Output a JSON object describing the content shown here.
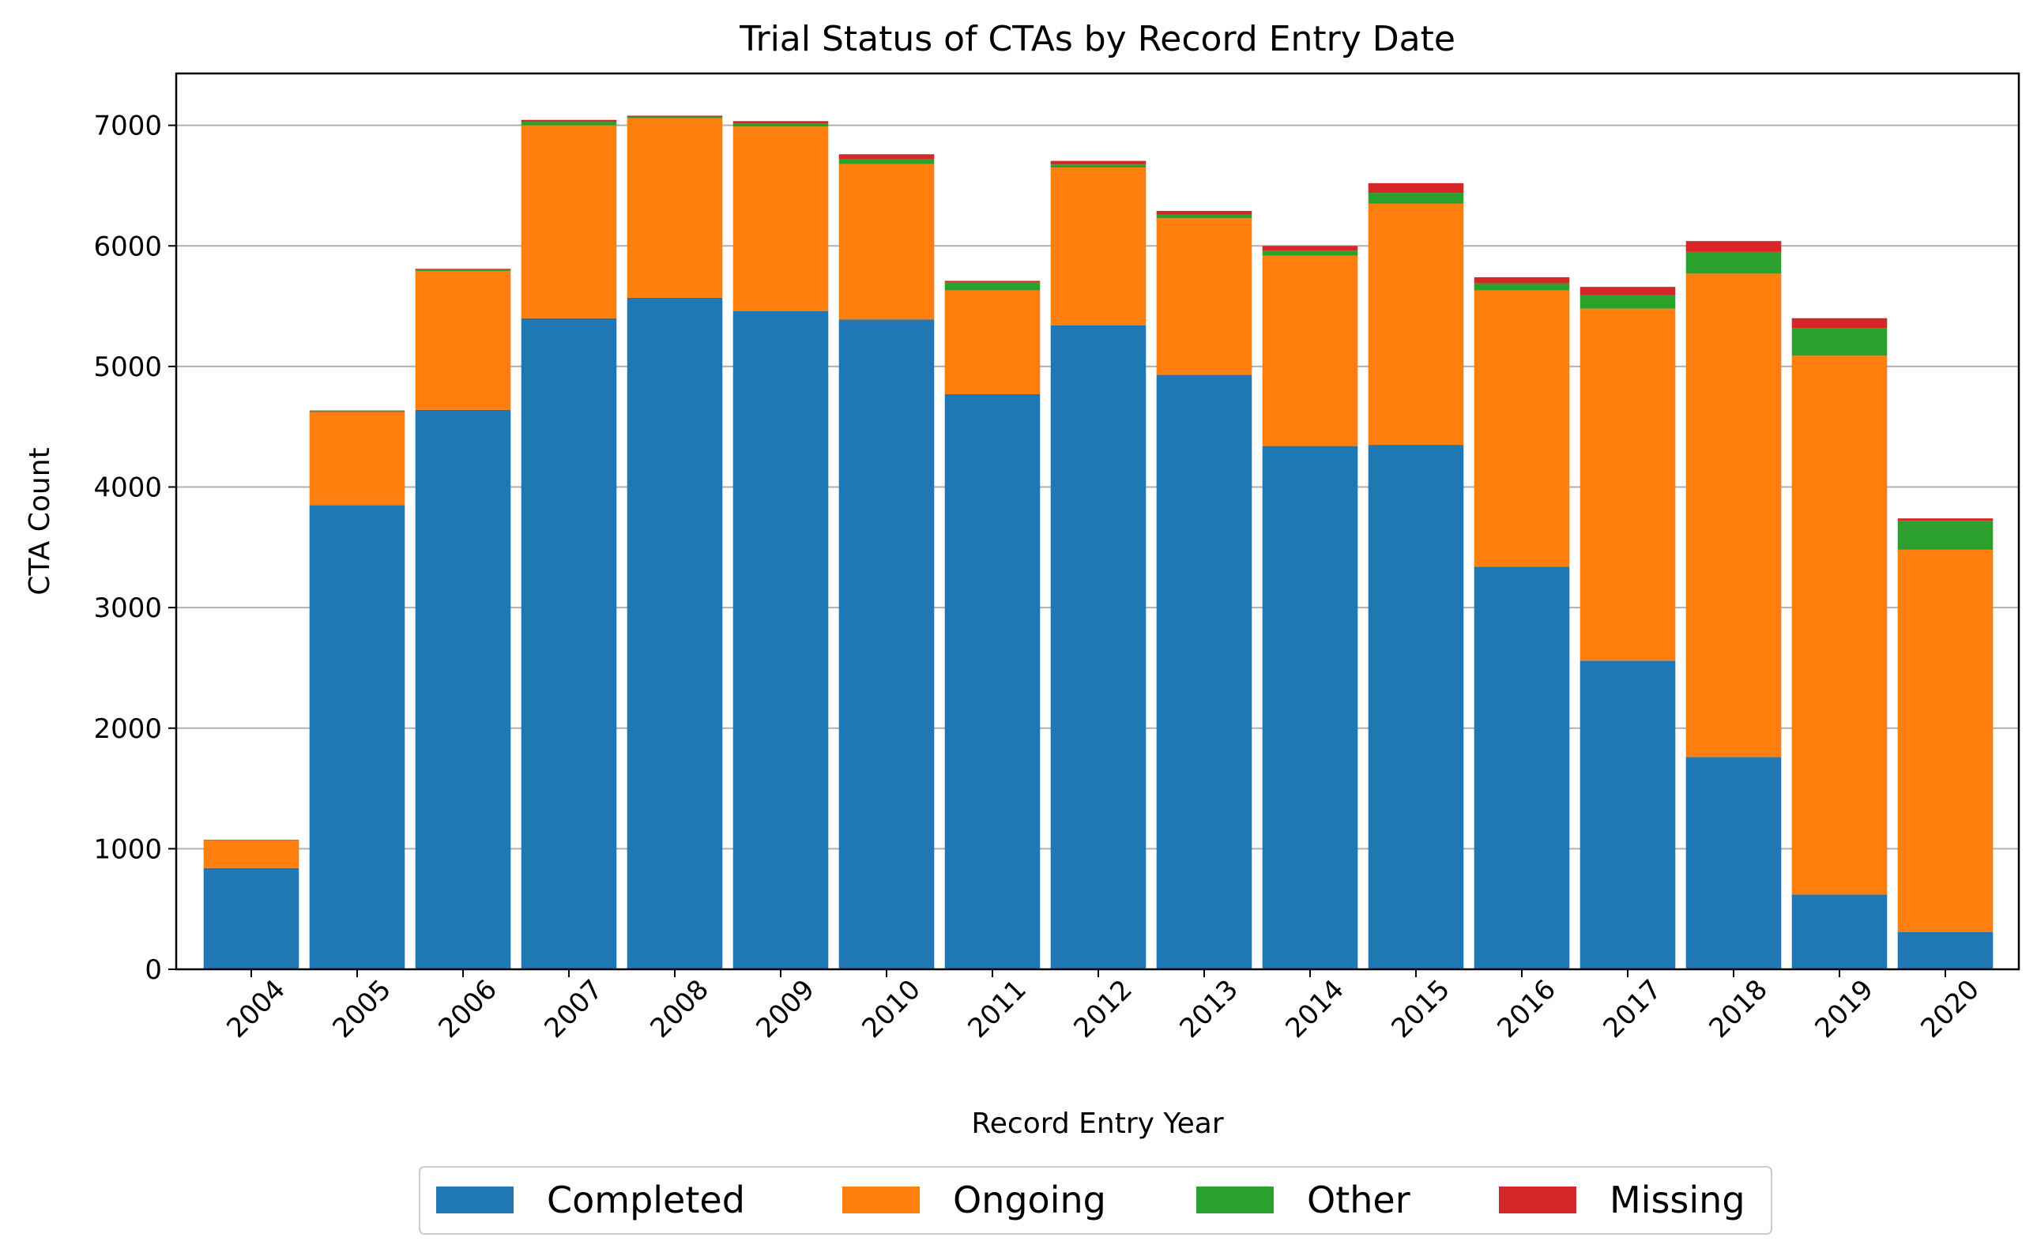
{
  "chart_data": {
    "type": "bar",
    "stacked": true,
    "title": "Trial Status of CTAs by Record Entry Date",
    "xlabel": "Record Entry Year",
    "ylabel": "CTA Count",
    "categories": [
      "2004",
      "2005",
      "2006",
      "2007",
      "2008",
      "2009",
      "2010",
      "2011",
      "2012",
      "2013",
      "2014",
      "2015",
      "2016",
      "2017",
      "2018",
      "2019",
      "2020"
    ],
    "series": [
      {
        "name": "Completed",
        "color": "#1f77b4",
        "values": [
          840,
          3850,
          4640,
          5400,
          5570,
          5460,
          5390,
          4770,
          5340,
          4930,
          4340,
          4350,
          3340,
          2560,
          1760,
          620,
          310
        ]
      },
      {
        "name": "Ongoing",
        "color": "#ff7f0e",
        "values": [
          230,
          770,
          1150,
          1600,
          1490,
          1530,
          1290,
          860,
          1310,
          1300,
          1580,
          2000,
          2290,
          2920,
          4010,
          4470,
          3170
        ]
      },
      {
        "name": "Other",
        "color": "#2ca02c",
        "values": [
          5,
          10,
          15,
          30,
          10,
          25,
          40,
          70,
          25,
          30,
          40,
          90,
          60,
          110,
          180,
          230,
          240
        ]
      },
      {
        "name": "Missing",
        "color": "#d62728",
        "values": [
          0,
          5,
          5,
          15,
          10,
          20,
          40,
          10,
          30,
          30,
          40,
          80,
          50,
          70,
          90,
          80,
          20
        ]
      }
    ],
    "yticks": [
      0,
      1000,
      2000,
      3000,
      4000,
      5000,
      6000,
      7000
    ],
    "ylim": [
      0,
      7430
    ],
    "grid": "y",
    "legend_position": "bottom"
  }
}
